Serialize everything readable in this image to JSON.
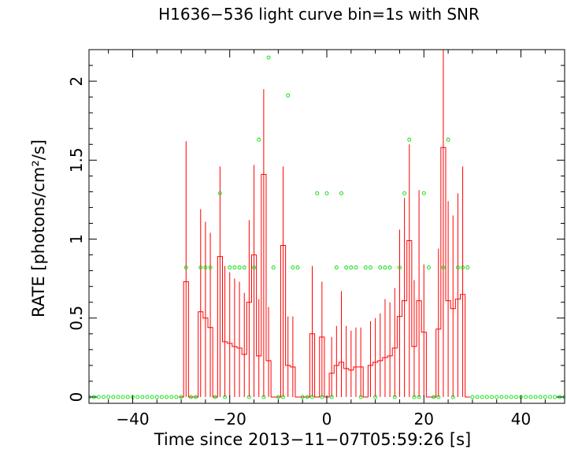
{
  "chart_data": {
    "type": "line",
    "title": "H1636−536 light curve bin=1s with SNR",
    "xlabel": "Time since 2013−11−07T05:59:26 [s]",
    "ylabel": "RATE [photons/cm²/s]",
    "xlim": [
      -49,
      49
    ],
    "ylim": [
      -0.04,
      2.2
    ],
    "xticks": [
      -40,
      -20,
      0,
      20,
      40
    ],
    "yticks": [
      0,
      0.5,
      1,
      1.5,
      2
    ],
    "xtick_labels": [
      "−40",
      "−20",
      "0",
      "20",
      "40"
    ],
    "ytick_labels": [
      "0",
      "0.5",
      "1",
      "1.5",
      "2"
    ],
    "grid": false,
    "series": [
      {
        "kind": "step-with-errors",
        "color": "#ff0000",
        "x": [
          -30,
          -29,
          -28,
          -27,
          -26,
          -25,
          -24,
          -23,
          -22,
          -21,
          -20,
          -19,
          -18,
          -17,
          -16,
          -15,
          -14,
          -13,
          -12,
          -11,
          -10,
          -9,
          -8,
          -7,
          -6,
          -5,
          -4,
          -3,
          -2,
          -1,
          0,
          1,
          2,
          3,
          4,
          5,
          6,
          7,
          8,
          9,
          10,
          11,
          12,
          13,
          14,
          15,
          16,
          17,
          18,
          19,
          20,
          21,
          22,
          23,
          24,
          25,
          26,
          27,
          28,
          29
        ],
        "values": [
          0,
          0.73,
          0,
          0,
          0.54,
          0.5,
          0.44,
          0,
          0.89,
          0.35,
          0.34,
          0.32,
          0.31,
          0.27,
          0.6,
          0.9,
          0.26,
          1.41,
          0.23,
          0,
          0,
          0.96,
          0.2,
          0.19,
          0,
          0,
          0,
          0.4,
          0,
          0.38,
          0,
          0.15,
          0.2,
          0.22,
          0.18,
          0.17,
          0.19,
          0.19,
          0,
          0.2,
          0.22,
          0.23,
          0.25,
          0.26,
          0.31,
          0.51,
          0.61,
          0.99,
          0.32,
          0.61,
          0.41,
          0,
          0,
          0.43,
          1.58,
          0.61,
          0.56,
          0.62,
          0.65,
          0
        ],
        "err_hi": [
          0,
          1.62,
          0,
          0,
          1.19,
          1.11,
          1.04,
          0,
          1.46,
          0.83,
          0.79,
          0.75,
          0.73,
          0.66,
          1.12,
          1.47,
          0.62,
          1.95,
          0.57,
          0,
          0,
          1.46,
          0.51,
          0.51,
          0,
          0,
          0,
          0.83,
          0,
          0.73,
          0,
          0.38,
          0.45,
          0.67,
          0.45,
          0.42,
          0.44,
          0.44,
          0,
          0.48,
          0.5,
          0.53,
          0.62,
          0.6,
          0.69,
          1.06,
          1.26,
          1.6,
          0.74,
          1.31,
          0.84,
          0,
          0,
          0.94,
          2.2,
          1.24,
          1.15,
          1.29,
          1.46,
          0
        ]
      },
      {
        "kind": "snr-points",
        "color": "#00dd00",
        "x_range": [
          -49,
          49
        ],
        "points": [
          [
            -29,
            0.82
          ],
          [
            -26,
            0.82
          ],
          [
            -25,
            0.82
          ],
          [
            -24,
            0.82
          ],
          [
            -22,
            1.29
          ],
          [
            -20,
            0.82
          ],
          [
            -19,
            0.82
          ],
          [
            -18,
            0.82
          ],
          [
            -17,
            0.82
          ],
          [
            -15,
            0.82
          ],
          [
            -14,
            1.63
          ],
          [
            -12,
            2.15
          ],
          [
            -11,
            0.82
          ],
          [
            -8,
            1.91
          ],
          [
            -7,
            0.82
          ],
          [
            -6,
            0.82
          ],
          [
            -2,
            1.29
          ],
          [
            0,
            1.29
          ],
          [
            2,
            0.82
          ],
          [
            3,
            1.29
          ],
          [
            4,
            0.82
          ],
          [
            5,
            0.82
          ],
          [
            6,
            0.82
          ],
          [
            8,
            0.82
          ],
          [
            9,
            0.82
          ],
          [
            11,
            0.82
          ],
          [
            12,
            0.82
          ],
          [
            13,
            0.82
          ],
          [
            15,
            0.82
          ],
          [
            16,
            1.29
          ],
          [
            17,
            1.63
          ],
          [
            20,
            1.29
          ],
          [
            21,
            0.82
          ],
          [
            24,
            0.82
          ],
          [
            25,
            1.63
          ],
          [
            27,
            0.82
          ],
          [
            28,
            0.82
          ],
          [
            29,
            0.82
          ]
        ]
      }
    ]
  }
}
